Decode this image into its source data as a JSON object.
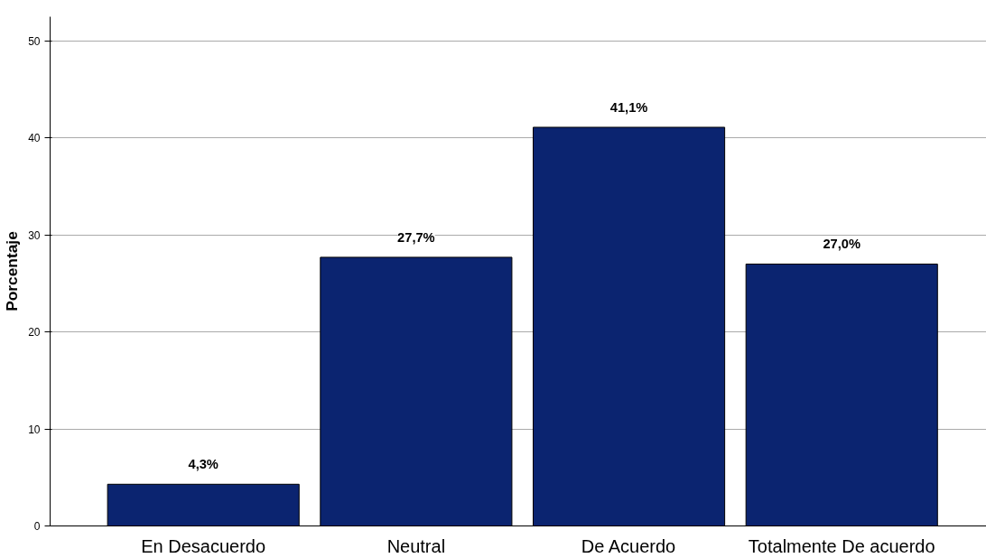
{
  "chart_data": {
    "type": "bar",
    "ylabel": "Porcentaje",
    "categories": [
      "En Desacuerdo",
      "Neutral",
      "De Acuerdo",
      "Totalmente De acuerdo"
    ],
    "values": [
      4.3,
      27.7,
      41.1,
      27.0
    ],
    "value_labels": [
      "4,3%",
      "27,7%",
      "41,1%",
      "27,0%"
    ],
    "color": "#0b2470",
    "ylim": [
      0,
      52.5
    ],
    "yticks": [
      0,
      10,
      20,
      30,
      40,
      50
    ],
    "grid": "y"
  }
}
